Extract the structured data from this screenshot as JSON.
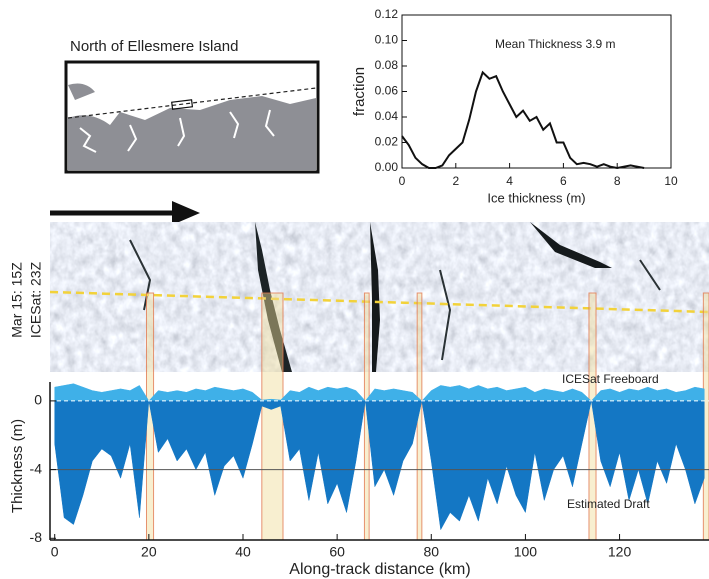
{
  "map": {
    "title": "North of Ellesmere Island"
  },
  "image": {
    "labels": [
      "Mar 15: 15Z",
      "ICESat: 23Z"
    ]
  },
  "chart_data": [
    {
      "type": "line",
      "x_label": "Ice thickness (m)",
      "y_label": "fraction",
      "annotation": "Mean Thickness 3.9 m",
      "color": "#111111",
      "x": [
        0,
        0.25,
        0.5,
        0.75,
        1,
        1.25,
        1.5,
        1.75,
        2,
        2.25,
        2.5,
        2.75,
        3,
        3.25,
        3.5,
        3.75,
        4,
        4.25,
        4.5,
        4.75,
        5,
        5.25,
        5.5,
        5.75,
        6,
        6.25,
        6.5,
        6.75,
        7,
        7.25,
        7.5,
        7.75,
        8,
        8.5,
        9
      ],
      "values": [
        0.025,
        0.018,
        0.008,
        0.003,
        0,
        0,
        0.002,
        0.01,
        0.015,
        0.02,
        0.038,
        0.06,
        0.075,
        0.07,
        0.072,
        0.06,
        0.05,
        0.04,
        0.045,
        0.037,
        0.04,
        0.03,
        0.035,
        0.02,
        0.02,
        0.008,
        0.003,
        0.004,
        0.003,
        0.001,
        0.003,
        0.001,
        0,
        0.002,
        0
      ],
      "xlim": [
        0,
        10
      ],
      "xticks": [
        0,
        2,
        4,
        6,
        8,
        10
      ],
      "ylim": [
        0,
        0.12
      ],
      "yticks": [
        {
          "value": 0,
          "label": "0.00"
        },
        {
          "value": 0.02,
          "label": "0.02"
        },
        {
          "value": 0.04,
          "label": "0.04"
        },
        {
          "value": 0.06,
          "label": "0.06"
        },
        {
          "value": 0.08,
          "label": "0.08"
        },
        {
          "value": 0.1,
          "label": "0.10"
        },
        {
          "value": 0.12,
          "label": "0.12"
        }
      ]
    },
    {
      "type": "area",
      "x_label": "Along-track distance (km)",
      "y_label": "Thickness (m)",
      "annotations": [
        "ICESat Freeboard",
        "Estimated Draft"
      ],
      "x": [
        0,
        2,
        4,
        6,
        8,
        10,
        12,
        14,
        16,
        18,
        20,
        22,
        24,
        26,
        28,
        30,
        32,
        34,
        36,
        38,
        40,
        42,
        44,
        46,
        48,
        50,
        52,
        54,
        56,
        58,
        60,
        62,
        64,
        66,
        68,
        70,
        72,
        74,
        76,
        78,
        80,
        82,
        84,
        86,
        88,
        90,
        92,
        94,
        96,
        98,
        100,
        102,
        104,
        106,
        108,
        110,
        112,
        114,
        116,
        118,
        120,
        122,
        124,
        126,
        128,
        130,
        132,
        134,
        136,
        138
      ],
      "series": [
        {
          "name": "ICESat Freeboard",
          "color": "#3fb0e8",
          "values": [
            0.8,
            0.9,
            1.0,
            0.8,
            0.6,
            0.5,
            0.6,
            0.7,
            0.6,
            0.9,
            0,
            0.6,
            0.5,
            0.6,
            0.5,
            0.7,
            0.6,
            0.8,
            0.7,
            0.6,
            0.7,
            0.5,
            0.05,
            0.1,
            0.05,
            0.6,
            0.5,
            0.8,
            0.6,
            0.8,
            0.7,
            0.8,
            0.6,
            0,
            0.7,
            0.6,
            0.7,
            0.6,
            0.5,
            0,
            0.6,
            0.9,
            0.8,
            0.9,
            0.7,
            0.9,
            0.7,
            0.8,
            0.6,
            0.7,
            0.8,
            0.5,
            0.7,
            0.6,
            0.5,
            0.7,
            0.5,
            0,
            0.6,
            0.7,
            0.5,
            0.7,
            0.6,
            0.8,
            0.6,
            0.7,
            0.5,
            0.6,
            0.8,
            0.7
          ]
        },
        {
          "name": "Estimated Draft",
          "color": "#1477c4",
          "values": [
            -2.5,
            -6.8,
            -7.2,
            -5.5,
            -3.5,
            -2.8,
            -3.2,
            -4.5,
            -2.5,
            -6.8,
            0,
            -3.0,
            -2.2,
            -3.5,
            -2.8,
            -4.0,
            -3.0,
            -5.5,
            -3.8,
            -3.2,
            -4.5,
            -2.5,
            -0.3,
            -0.5,
            -0.3,
            -3.5,
            -2.8,
            -5.8,
            -3.0,
            -6.0,
            -4.8,
            -6.5,
            -3.5,
            0,
            -5.0,
            -4.0,
            -5.5,
            -3.5,
            -2.5,
            0,
            -3.5,
            -7.5,
            -6.5,
            -7.0,
            -5.5,
            -7.0,
            -4.5,
            -6.0,
            -3.8,
            -5.5,
            -6.5,
            -3.0,
            -5.8,
            -4.0,
            -3.2,
            -5.0,
            -2.5,
            0,
            -3.5,
            -5.0,
            -3.0,
            -5.8,
            -4.0,
            -6.0,
            -3.5,
            -4.8,
            -2.5,
            -4.0,
            -6.0,
            -4.5
          ]
        }
      ],
      "leads": [
        [
          19.5,
          21
        ],
        [
          44,
          48.5
        ],
        [
          65.8,
          66.8
        ],
        [
          77,
          78
        ],
        [
          113.5,
          115
        ],
        [
          137.8,
          139
        ]
      ],
      "reference_y": -4,
      "xlim": [
        -1,
        139
      ],
      "xticks": [
        0,
        20,
        40,
        60,
        80,
        100,
        120
      ],
      "ylim": [
        -8.1,
        1.1
      ],
      "yticks": [
        -8,
        -4,
        0
      ]
    }
  ]
}
